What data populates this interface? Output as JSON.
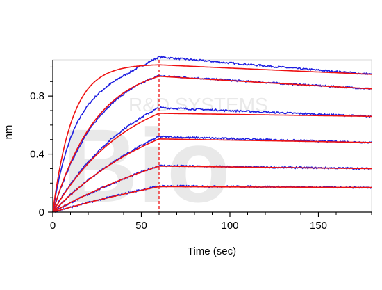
{
  "chart_data": {
    "type": "line",
    "title": "",
    "xlabel": "Time (sec)",
    "ylabel": "nm",
    "xlim": [
      0,
      180
    ],
    "ylim": [
      0,
      1.05
    ],
    "x_ticks": [
      0,
      50,
      100,
      150
    ],
    "y_ticks": [
      0,
      0.4,
      0.8
    ],
    "x_tick_labels": [
      "0",
      "50",
      "100",
      "150"
    ],
    "y_tick_labels": [
      "0",
      "0.4",
      "0.8"
    ],
    "grid": false,
    "legend": "none",
    "association_end_x": 60,
    "colors": {
      "measured": "#1f1fe0",
      "fit": "#ee1111",
      "divider": "#ee1111"
    },
    "curves": [
      {
        "plateau_fit": 1.02,
        "k": 0.09,
        "end_measured": 0.95,
        "end_fit": 0.95,
        "peak_measured": 1.07
      },
      {
        "plateau_fit": 1.03,
        "k": 0.04,
        "end_measured": 0.85,
        "end_fit": 0.85,
        "peak_measured": 0.94
      },
      {
        "plateau_fit": 0.91,
        "k": 0.023,
        "end_measured": 0.66,
        "end_fit": 0.66,
        "peak_measured": 0.72
      },
      {
        "plateau_fit": 0.85,
        "k": 0.015,
        "end_measured": 0.48,
        "end_fit": 0.48,
        "peak_measured": 0.52
      },
      {
        "plateau_fit": 0.76,
        "k": 0.009,
        "end_measured": 0.3,
        "end_fit": 0.3,
        "peak_measured": 0.32
      },
      {
        "plateau_fit": 0.58,
        "k": 0.006,
        "end_measured": 0.17,
        "end_fit": 0.17,
        "peak_measured": 0.18
      }
    ]
  }
}
